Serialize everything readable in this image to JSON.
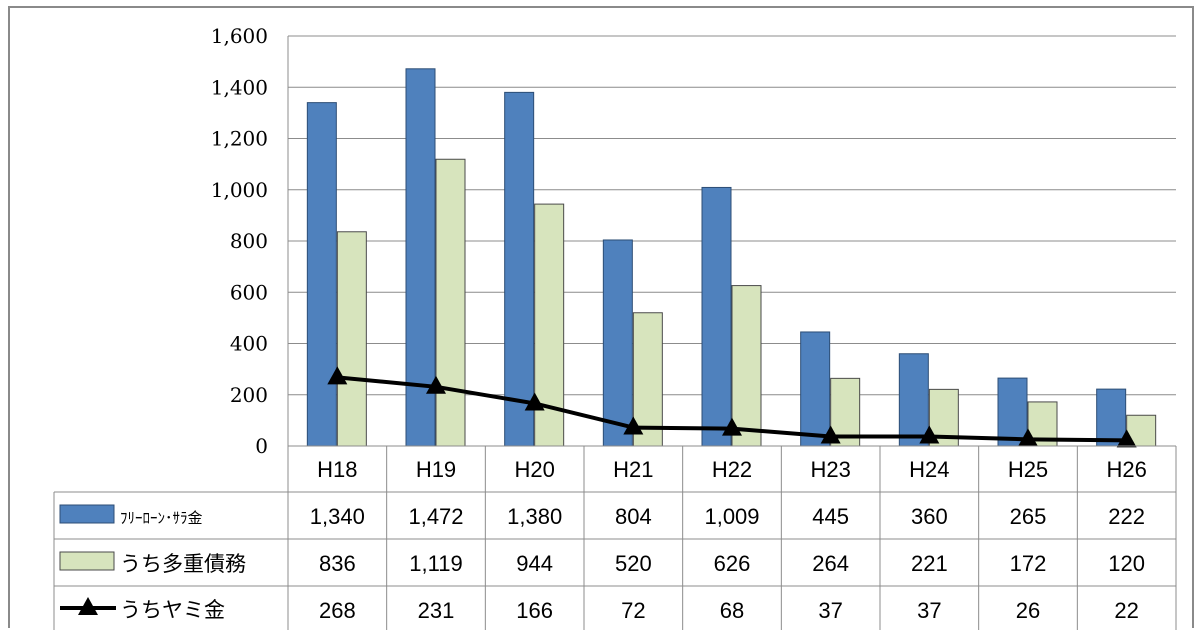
{
  "chart_data": {
    "type": "bar",
    "categories": [
      "H18",
      "H19",
      "H20",
      "H21",
      "H22",
      "H23",
      "H24",
      "H25",
      "H26"
    ],
    "series": [
      {
        "name": "ﾌﾘｰﾛｰﾝ･ｻﾗ金",
        "kind": "bar",
        "color": "#4f81bd",
        "values": [
          1340,
          1472,
          1380,
          804,
          1009,
          445,
          360,
          265,
          222
        ],
        "labels": [
          "1,340",
          "1,472",
          "1,380",
          "804",
          "1,009",
          "445",
          "360",
          "265",
          "222"
        ]
      },
      {
        "name": "うち多重債務",
        "kind": "bar",
        "color": "#d7e4bd",
        "values": [
          836,
          1119,
          944,
          520,
          626,
          264,
          221,
          172,
          120
        ],
        "labels": [
          "836",
          "1,119",
          "944",
          "520",
          "626",
          "264",
          "221",
          "172",
          "120"
        ]
      },
      {
        "name": "うちヤミ金",
        "kind": "line",
        "color": "#000000",
        "marker": "triangle",
        "values": [
          268,
          231,
          166,
          72,
          68,
          37,
          37,
          26,
          22
        ],
        "labels": [
          "268",
          "231",
          "166",
          "72",
          "68",
          "37",
          "37",
          "26",
          "22"
        ]
      }
    ],
    "ylim": [
      0,
      1600
    ],
    "yticks": [
      "0",
      "200",
      "400",
      "600",
      "800",
      "1,000",
      "1,200",
      "1,400",
      "1,600"
    ],
    "grid": true,
    "legend": "data-table"
  }
}
